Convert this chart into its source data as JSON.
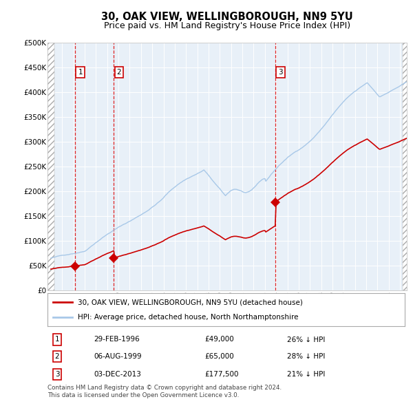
{
  "title": "30, OAK VIEW, WELLINGBOROUGH, NN9 5YU",
  "subtitle": "Price paid vs. HM Land Registry's House Price Index (HPI)",
  "ylim": [
    0,
    500000
  ],
  "yticks": [
    0,
    50000,
    100000,
    150000,
    200000,
    250000,
    300000,
    350000,
    400000,
    450000,
    500000
  ],
  "ytick_labels": [
    "£0",
    "£50K",
    "£100K",
    "£150K",
    "£200K",
    "£250K",
    "£300K",
    "£350K",
    "£400K",
    "£450K",
    "£500K"
  ],
  "xlim_start": 1993.7,
  "xlim_end": 2025.6,
  "hpi_color": "#a8c8e8",
  "price_color": "#cc0000",
  "vline_color": "#dd0000",
  "plot_bg_color": "#e8f0f8",
  "grid_color": "#ffffff",
  "sale_dates": [
    1996.16,
    1999.59,
    2013.92
  ],
  "sale_prices": [
    49000,
    65000,
    177500
  ],
  "sale_labels": [
    "1",
    "2",
    "3"
  ],
  "legend_price_label": "30, OAK VIEW, WELLINGBOROUGH, NN9 5YU (detached house)",
  "legend_hpi_label": "HPI: Average price, detached house, North Northamptonshire",
  "table_data": [
    [
      "1",
      "29-FEB-1996",
      "£49,000",
      "26% ↓ HPI"
    ],
    [
      "2",
      "06-AUG-1999",
      "£65,000",
      "28% ↓ HPI"
    ],
    [
      "3",
      "03-DEC-2013",
      "£177,500",
      "21% ↓ HPI"
    ]
  ],
  "footer": "Contains HM Land Registry data © Crown copyright and database right 2024.\nThis data is licensed under the Open Government Licence v3.0.",
  "title_fontsize": 10.5,
  "subtitle_fontsize": 9
}
